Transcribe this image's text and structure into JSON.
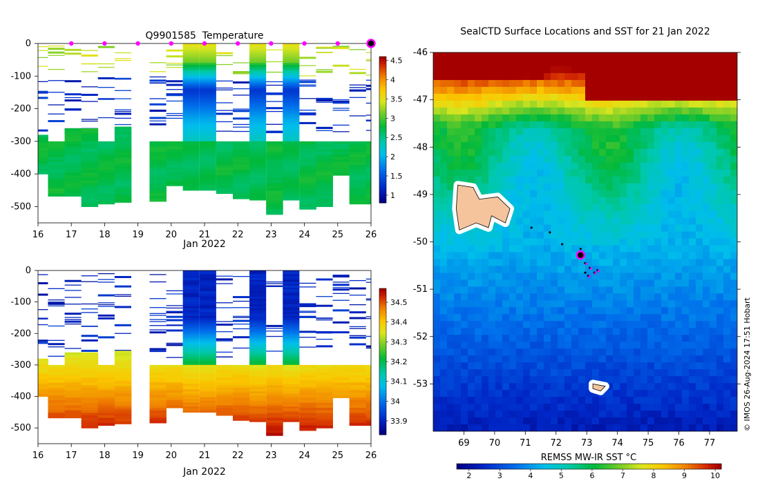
{
  "footer": {
    "credit": "© IMOS 26-Aug-2024 17:51 Hobart"
  },
  "chart_data": [
    {
      "type": "heatmap",
      "panel": "temperature-section",
      "title": "Q9901585  Temperature",
      "xlabel": "Jan 2022",
      "ylabel": "",
      "x_ticks": [
        "16",
        "17",
        "18",
        "19",
        "20",
        "21",
        "22",
        "23",
        "24",
        "25",
        "26"
      ],
      "xlim": [
        16,
        26
      ],
      "y_ticks": [
        "0",
        "-100",
        "-200",
        "-300",
        "-400",
        "-500"
      ],
      "ylim": [
        -550,
        0
      ],
      "colorbar": {
        "ticks": [
          "1",
          "1.5",
          "2",
          "2.5",
          "3",
          "3.5",
          "4",
          "4.5"
        ],
        "range": [
          0.8,
          4.6
        ]
      },
      "surface_markers_days": [
        17,
        18,
        19,
        20,
        21,
        22,
        23,
        24,
        25
      ],
      "last_profile_day": 26,
      "profiles": [
        {
          "x0": 16.0,
          "x1": 16.3,
          "bottom": -400
        },
        {
          "x0": 16.3,
          "x1": 16.8,
          "bottom": -465
        },
        {
          "x0": 16.8,
          "x1": 17.3,
          "bottom": -465
        },
        {
          "x0": 17.3,
          "x1": 17.8,
          "bottom": -495
        },
        {
          "x0": 17.8,
          "x1": 18.3,
          "bottom": -490
        },
        {
          "x0": 18.3,
          "x1": 18.8,
          "bottom": -485
        },
        {
          "x0": 19.35,
          "x1": 19.85,
          "bottom": -480
        },
        {
          "x0": 19.85,
          "x1": 20.35,
          "bottom": -430
        },
        {
          "x0": 20.35,
          "x1": 20.85,
          "bottom": -450
        },
        {
          "x0": 20.85,
          "x1": 21.35,
          "bottom": -448
        },
        {
          "x0": 21.35,
          "x1": 21.85,
          "bottom": -458
        },
        {
          "x0": 21.85,
          "x1": 22.35,
          "bottom": -473
        },
        {
          "x0": 22.35,
          "x1": 22.85,
          "bottom": -478
        },
        {
          "x0": 22.85,
          "x1": 23.35,
          "bottom": -518
        },
        {
          "x0": 23.35,
          "x1": 23.85,
          "bottom": -478
        },
        {
          "x0": 23.85,
          "x1": 24.35,
          "bottom": -503
        },
        {
          "x0": 24.35,
          "x1": 24.85,
          "bottom": -493
        },
        {
          "x0": 24.85,
          "x1": 25.35,
          "bottom": -400
        },
        {
          "x0": 25.35,
          "x1": 25.85,
          "bottom": -488
        },
        {
          "x0": 25.85,
          "x1": 26.0,
          "bottom": -490
        }
      ],
      "deep_columns": [
        {
          "x0": 20.35,
          "x1": 20.85
        },
        {
          "x0": 20.85,
          "x1": 21.35
        },
        {
          "x0": 22.35,
          "x1": 22.85
        },
        {
          "x0": 23.35,
          "x1": 23.85
        }
      ]
    },
    {
      "type": "heatmap",
      "panel": "salinity-section",
      "title": "",
      "xlabel": "Jan 2022",
      "ylabel": "",
      "x_ticks": [
        "16",
        "17",
        "18",
        "19",
        "20",
        "21",
        "22",
        "23",
        "24",
        "25",
        "26"
      ],
      "xlim": [
        16,
        26
      ],
      "y_ticks": [
        "0",
        "-100",
        "-200",
        "-300",
        "-400",
        "-500"
      ],
      "ylim": [
        -550,
        0
      ],
      "colorbar": {
        "ticks": [
          "33.9",
          "34",
          "34.1",
          "34.2",
          "34.3",
          "34.4",
          "34.5"
        ],
        "range": [
          33.83,
          34.57
        ]
      }
    },
    {
      "type": "heatmap",
      "panel": "sst-map",
      "title": "SealCTD Surface Locations and SST for 21 Jan 2022",
      "xlabel": "",
      "ylabel": "",
      "x_ticks": [
        "69",
        "70",
        "71",
        "72",
        "73",
        "74",
        "75",
        "76",
        "77"
      ],
      "xlim": [
        68.0,
        77.9
      ],
      "y_ticks": [
        "-46",
        "-47",
        "-48",
        "-49",
        "-50",
        "-51",
        "-52",
        "-53"
      ],
      "ylim": [
        -54.0,
        -46.0
      ],
      "colorbar": {
        "label": "REMSS MW-IR SST °C",
        "ticks": [
          "2",
          "3",
          "4",
          "5",
          "6",
          "7",
          "8",
          "9",
          "10"
        ],
        "range": [
          1.6,
          10.2
        ]
      },
      "islands": [
        "Kerguelen",
        "Heard Island"
      ],
      "seal_track": [
        {
          "lon": 71.2,
          "lat": -49.7
        },
        {
          "lon": 71.8,
          "lat": -49.8
        },
        {
          "lon": 72.2,
          "lat": -50.05
        },
        {
          "lon": 72.8,
          "lat": -50.15
        },
        {
          "lon": 72.95,
          "lat": -50.45
        },
        {
          "lon": 73.1,
          "lat": -50.55
        },
        {
          "lon": 73.25,
          "lat": -50.65
        },
        {
          "lon": 73.05,
          "lat": -50.72
        },
        {
          "lon": 73.35,
          "lat": -50.6
        },
        {
          "lon": 72.95,
          "lat": -50.65
        }
      ],
      "latest_position": {
        "lon": 72.8,
        "lat": -50.28
      }
    }
  ]
}
